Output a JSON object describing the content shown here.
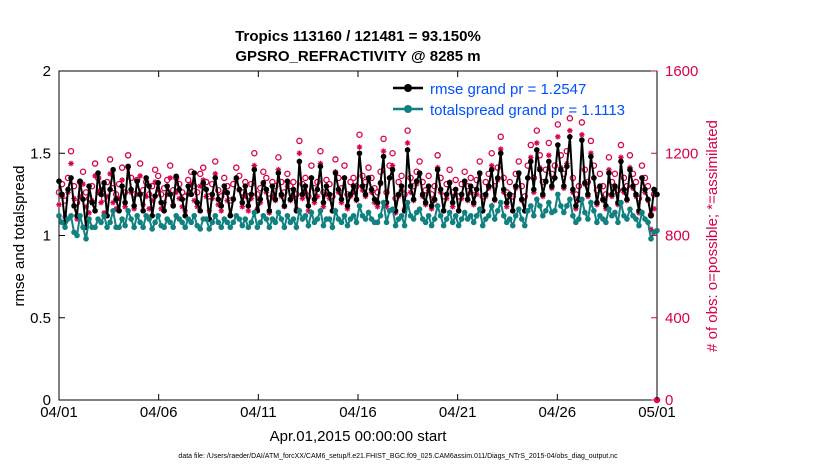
{
  "chart_data": {
    "type": "line",
    "title_line1": "Tropics 113160 / 121481 = 93.150%",
    "title_line2": "GPSRO_REFRACTIVITY @ 8285 m",
    "xlabel": "Apr.01,2015 00:00:00 start",
    "ylabel": "rmse and totalspread",
    "ylabel_right": "# of obs: o=possible; *=assimilated",
    "footer": "data file: /Users/raeder/DAI/ATM_forcXX/CAM6_setup/f.e21.FHIST_BGC.f09_025.CAM6assim.011/Diags_NTrS_2015-04/obs_diag_output.nc",
    "xlim": [
      0,
      30
    ],
    "ylim": [
      0,
      2
    ],
    "ylim_right": [
      0,
      1600
    ],
    "x_ticks": [
      0,
      5,
      10,
      15,
      20,
      25,
      30
    ],
    "x_tick_labels": [
      "04/01",
      "04/06",
      "04/11",
      "04/16",
      "04/21",
      "04/26",
      "05/01"
    ],
    "y_ticks": [
      0,
      0.5,
      1,
      1.5,
      2
    ],
    "y_tick_labels": [
      "0",
      "0.5",
      "1",
      "1.5",
      "2"
    ],
    "y_right_ticks": [
      0,
      400,
      800,
      1200,
      1600
    ],
    "y_right_tick_labels": [
      "0",
      "400",
      "800",
      "1200",
      "1600"
    ],
    "colors": {
      "rmse": "#000000",
      "spread": "#108080",
      "obs": "#D6004F",
      "legend_text": "#0050FF",
      "axis": "#000000",
      "grid": "#e0e0e0"
    },
    "series": [
      {
        "name": "rmse grand pr = 1.2547",
        "key": "rmse",
        "values": [
          1.33,
          1.25,
          1.08,
          1.28,
          1.35,
          1.18,
          1.12,
          1.33,
          1.22,
          1.05,
          1.3,
          1.2,
          1.15,
          1.38,
          1.25,
          1.32,
          1.12,
          1.28,
          1.4,
          1.22,
          1.15,
          1.3,
          1.2,
          1.42,
          1.28,
          1.18,
          1.33,
          1.25,
          1.15,
          1.35,
          1.3,
          1.12,
          1.24,
          1.32,
          1.2,
          1.15,
          1.3,
          1.25,
          1.18,
          1.36,
          1.28,
          1.22,
          1.12,
          1.3,
          1.25,
          1.38,
          1.2,
          1.15,
          1.32,
          1.28,
          1.1,
          1.25,
          1.35,
          1.22,
          1.18,
          1.3,
          1.26,
          1.12,
          1.22,
          1.35,
          1.28,
          1.2,
          1.3,
          1.18,
          1.25,
          1.4,
          1.15,
          1.22,
          1.32,
          1.28,
          1.15,
          1.3,
          1.22,
          1.38,
          1.25,
          1.18,
          1.33,
          1.22,
          1.28,
          1.15,
          1.45,
          1.25,
          1.3,
          1.18,
          1.35,
          1.22,
          1.28,
          1.42,
          1.2,
          1.3,
          1.25,
          1.15,
          1.38,
          1.28,
          1.22,
          1.35,
          1.18,
          1.25,
          1.3,
          1.22,
          1.5,
          1.3,
          1.25,
          1.35,
          1.28,
          1.22,
          1.2,
          1.32,
          1.48,
          1.2,
          1.35,
          1.4,
          1.15,
          1.25,
          1.3,
          1.15,
          1.52,
          1.3,
          1.22,
          1.33,
          1.38,
          1.25,
          1.2,
          1.3,
          1.18,
          1.22,
          1.4,
          1.28,
          1.15,
          1.25,
          1.32,
          1.2,
          1.28,
          1.15,
          1.25,
          1.33,
          1.22,
          1.3,
          1.2,
          1.28,
          1.38,
          1.15,
          1.25,
          1.3,
          1.4,
          1.22,
          1.35,
          1.5,
          1.28,
          1.2,
          1.25,
          1.15,
          1.3,
          1.38,
          1.22,
          1.15,
          1.35,
          1.45,
          1.28,
          1.52,
          1.4,
          1.25,
          1.33,
          1.45,
          1.3,
          1.35,
          1.55,
          1.4,
          1.3,
          1.42,
          1.6,
          1.28,
          1.18,
          1.22,
          1.58,
          1.32,
          1.25,
          1.48,
          1.35,
          1.2,
          1.3,
          1.22,
          1.18,
          1.38,
          1.25,
          1.3,
          1.2,
          1.45,
          1.28,
          1.22,
          1.4,
          1.3,
          1.25,
          1.15,
          1.35,
          1.28,
          1.22,
          1.12,
          1.28,
          1.25
        ]
      },
      {
        "name": "totalspread grand pr = 1.1113",
        "key": "spread",
        "values": [
          1.12,
          1.08,
          1.05,
          1.1,
          1.12,
          1.02,
          1.0,
          1.12,
          1.05,
          0.98,
          1.1,
          1.05,
          1.05,
          1.1,
          1.08,
          1.12,
          1.05,
          1.08,
          1.15,
          1.05,
          1.05,
          1.1,
          1.06,
          1.15,
          1.1,
          1.05,
          1.12,
          1.08,
          1.05,
          1.12,
          1.1,
          1.04,
          1.08,
          1.12,
          1.06,
          1.05,
          1.1,
          1.08,
          1.05,
          1.12,
          1.1,
          1.08,
          1.05,
          1.1,
          1.08,
          1.12,
          1.06,
          1.04,
          1.1,
          1.1,
          1.04,
          1.08,
          1.12,
          1.08,
          1.05,
          1.1,
          1.08,
          1.05,
          1.08,
          1.12,
          1.1,
          1.06,
          1.1,
          1.05,
          1.08,
          1.14,
          1.05,
          1.08,
          1.12,
          1.1,
          1.05,
          1.1,
          1.08,
          1.14,
          1.1,
          1.05,
          1.12,
          1.08,
          1.1,
          1.05,
          1.15,
          1.1,
          1.12,
          1.06,
          1.14,
          1.08,
          1.1,
          1.15,
          1.06,
          1.1,
          1.1,
          1.05,
          1.15,
          1.1,
          1.08,
          1.12,
          1.06,
          1.1,
          1.12,
          1.08,
          1.18,
          1.12,
          1.1,
          1.14,
          1.1,
          1.08,
          1.08,
          1.12,
          1.2,
          1.08,
          1.15,
          1.16,
          1.06,
          1.1,
          1.12,
          1.06,
          1.2,
          1.12,
          1.1,
          1.14,
          1.16,
          1.1,
          1.08,
          1.12,
          1.06,
          1.1,
          1.18,
          1.12,
          1.06,
          1.1,
          1.14,
          1.08,
          1.12,
          1.06,
          1.1,
          1.14,
          1.1,
          1.12,
          1.08,
          1.12,
          1.16,
          1.06,
          1.1,
          1.12,
          1.18,
          1.1,
          1.15,
          1.2,
          1.12,
          1.08,
          1.1,
          1.06,
          1.12,
          1.16,
          1.1,
          1.06,
          1.15,
          1.18,
          1.12,
          1.22,
          1.18,
          1.12,
          1.15,
          1.2,
          1.14,
          1.15,
          1.25,
          1.18,
          1.14,
          1.18,
          1.22,
          1.12,
          1.08,
          1.1,
          1.22,
          1.14,
          1.1,
          1.2,
          1.15,
          1.08,
          1.12,
          1.1,
          1.08,
          1.16,
          1.12,
          1.14,
          1.08,
          1.2,
          1.12,
          1.1,
          1.16,
          1.12,
          1.1,
          1.06,
          1.14,
          1.1,
          1.08,
          0.98,
          1.02,
          1.03
        ]
      }
    ],
    "obs_possible": {
      "marker": "o",
      "values": [
        1010,
        1050,
        970,
        1080,
        1210,
        1040,
        960,
        1060,
        1110,
        1010,
        980,
        1040,
        1150,
        1080,
        1020,
        980,
        1060,
        1170,
        1030,
        1000,
        1050,
        1130,
        1010,
        1190,
        1080,
        1000,
        1070,
        1150,
        1020,
        1060,
        1000,
        1040,
        1120,
        1090,
        1000,
        1030,
        1070,
        1140,
        1020,
        1080,
        1050,
        1010,
        990,
        1070,
        1110,
        1040,
        1010,
        1100,
        1130,
        1060,
        990,
        1050,
        1160,
        1020,
        990,
        1080,
        1040,
        970,
        1050,
        1130,
        1090,
        1010,
        1060,
        990,
        1050,
        1200,
        1000,
        1030,
        1110,
        1080,
        980,
        1060,
        1040,
        1180,
        1060,
        1010,
        1100,
        1040,
        1060,
        1000,
        1260,
        1050,
        1080,
        990,
        1140,
        1030,
        1060,
        1210,
        1010,
        1070,
        1050,
        990,
        1170,
        1080,
        1030,
        1140,
        1000,
        1060,
        1080,
        1040,
        1290,
        1090,
        1060,
        1130,
        1080,
        1030,
        1010,
        1110,
        1270,
        1010,
        1140,
        1200,
        980,
        1060,
        1090,
        1000,
        1310,
        1080,
        1040,
        1110,
        1160,
        1060,
        1020,
        1090,
        1000,
        1040,
        1190,
        1080,
        990,
        1050,
        1120,
        1010,
        1070,
        990,
        1050,
        1110,
        1040,
        1080,
        1020,
        1070,
        1160,
        990,
        1060,
        1100,
        1200,
        1040,
        1130,
        1280,
        1080,
        1010,
        1060,
        990,
        1100,
        1160,
        1040,
        990,
        1140,
        1240,
        1080,
        1310,
        1190,
        1060,
        1120,
        1250,
        1100,
        1140,
        1340,
        1190,
        1100,
        1210,
        1370,
        1080,
        1000,
        1040,
        1350,
        1120,
        1060,
        1260,
        1140,
        1020,
        1100,
        1040,
        1000,
        1180,
        1060,
        1100,
        1020,
        1240,
        1080,
        1040,
        1190,
        1100,
        1060,
        980,
        1140,
        1080,
        1040,
        900,
        1000,
        0
      ]
    },
    "obs_assimilated": {
      "marker": "*",
      "values": [
        950,
        990,
        890,
        1010,
        1150,
        980,
        880,
        990,
        1050,
        940,
        910,
        970,
        1090,
        1010,
        960,
        910,
        990,
        1100,
        960,
        930,
        980,
        1070,
        940,
        1130,
        1010,
        930,
        1000,
        1090,
        950,
        990,
        930,
        970,
        1060,
        1020,
        930,
        960,
        1000,
        1080,
        950,
        1010,
        980,
        940,
        920,
        1000,
        1050,
        970,
        940,
        1040,
        1070,
        990,
        920,
        980,
        1100,
        950,
        920,
        1010,
        970,
        900,
        980,
        1070,
        1020,
        940,
        990,
        920,
        980,
        1140,
        930,
        960,
        1050,
        1010,
        910,
        990,
        970,
        1120,
        990,
        940,
        1040,
        970,
        990,
        930,
        1200,
        980,
        1010,
        920,
        1080,
        960,
        990,
        1150,
        940,
        1000,
        980,
        920,
        1110,
        1010,
        960,
        1080,
        930,
        990,
        1010,
        970,
        1230,
        1020,
        990,
        1070,
        1010,
        960,
        940,
        1050,
        1210,
        940,
        1080,
        1140,
        910,
        990,
        1020,
        930,
        1250,
        1010,
        970,
        1050,
        1100,
        990,
        950,
        1020,
        930,
        970,
        1130,
        1010,
        920,
        980,
        1060,
        940,
        1000,
        920,
        980,
        1050,
        970,
        1010,
        950,
        1000,
        1100,
        920,
        990,
        1030,
        1140,
        970,
        1070,
        1220,
        1010,
        940,
        990,
        920,
        1030,
        1100,
        970,
        920,
        1080,
        1180,
        1010,
        1250,
        1130,
        990,
        1060,
        1190,
        1030,
        1080,
        1280,
        1130,
        1030,
        1150,
        1310,
        1010,
        930,
        970,
        1290,
        1050,
        990,
        1200,
        1080,
        950,
        1030,
        970,
        930,
        1120,
        990,
        1030,
        950,
        1180,
        1010,
        970,
        1130,
        1030,
        990,
        910,
        1080,
        1010,
        970,
        830,
        930,
        0
      ]
    }
  }
}
